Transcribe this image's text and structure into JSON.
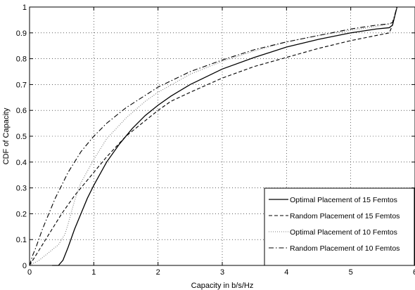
{
  "chart_data": {
    "type": "line",
    "title": "",
    "xlabel": "Capacity in b/s/Hz",
    "ylabel": "CDF of Capacity",
    "xlim": [
      0,
      6
    ],
    "ylim": [
      0,
      1
    ],
    "xticks": [
      "0",
      "1",
      "2",
      "3",
      "4",
      "5",
      "6"
    ],
    "yticks": [
      "0",
      "0.1",
      "0.2",
      "0.3",
      "0.4",
      "0.5",
      "0.6",
      "0.7",
      "0.8",
      "0.9",
      "1"
    ],
    "grid": true,
    "legend_position": "bottom-right",
    "series": [
      {
        "name": "Optimal Placement of 15 Femtos",
        "color": "#000000",
        "dash": "solid",
        "points": [
          [
            0.35,
            0.0
          ],
          [
            0.45,
            0.0
          ],
          [
            0.52,
            0.02
          ],
          [
            0.6,
            0.07
          ],
          [
            0.7,
            0.14
          ],
          [
            0.8,
            0.2
          ],
          [
            0.9,
            0.26
          ],
          [
            1.0,
            0.31
          ],
          [
            1.2,
            0.4
          ],
          [
            1.4,
            0.47
          ],
          [
            1.6,
            0.53
          ],
          [
            1.8,
            0.58
          ],
          [
            2.0,
            0.62
          ],
          [
            2.2,
            0.655
          ],
          [
            2.5,
            0.7
          ],
          [
            3.0,
            0.76
          ],
          [
            3.5,
            0.805
          ],
          [
            4.0,
            0.845
          ],
          [
            4.5,
            0.875
          ],
          [
            5.0,
            0.9
          ],
          [
            5.4,
            0.915
          ],
          [
            5.6,
            0.92
          ],
          [
            5.65,
            0.93
          ],
          [
            5.72,
            1.0
          ]
        ]
      },
      {
        "name": "Random Placement of 15 Femtos",
        "color": "#000000",
        "dash": "dashed",
        "points": [
          [
            0.0,
            0.0
          ],
          [
            0.1,
            0.04
          ],
          [
            0.2,
            0.08
          ],
          [
            0.35,
            0.14
          ],
          [
            0.5,
            0.2
          ],
          [
            0.7,
            0.27
          ],
          [
            0.9,
            0.33
          ],
          [
            1.0,
            0.36
          ],
          [
            1.2,
            0.42
          ],
          [
            1.5,
            0.5
          ],
          [
            2.0,
            0.6
          ],
          [
            2.2,
            0.635
          ],
          [
            2.5,
            0.67
          ],
          [
            3.0,
            0.725
          ],
          [
            3.5,
            0.77
          ],
          [
            4.0,
            0.805
          ],
          [
            4.5,
            0.84
          ],
          [
            5.0,
            0.87
          ],
          [
            5.3,
            0.885
          ],
          [
            5.6,
            0.9
          ],
          [
            5.65,
            0.93
          ],
          [
            5.72,
            1.0
          ]
        ]
      },
      {
        "name": "Optimal Placement of 10 Femtos",
        "color": "#7f7f7f",
        "dash": "dotted",
        "points": [
          [
            0.0,
            0.0
          ],
          [
            0.15,
            0.02
          ],
          [
            0.3,
            0.05
          ],
          [
            0.45,
            0.08
          ],
          [
            0.5,
            0.1
          ],
          [
            0.55,
            0.12
          ],
          [
            0.6,
            0.16
          ],
          [
            0.7,
            0.25
          ],
          [
            0.8,
            0.32
          ],
          [
            1.0,
            0.41
          ],
          [
            1.2,
            0.49
          ],
          [
            1.5,
            0.57
          ],
          [
            1.8,
            0.635
          ],
          [
            2.0,
            0.67
          ],
          [
            2.5,
            0.74
          ],
          [
            3.0,
            0.79
          ],
          [
            3.5,
            0.83
          ],
          [
            4.0,
            0.865
          ],
          [
            4.5,
            0.89
          ],
          [
            5.0,
            0.91
          ],
          [
            5.4,
            0.925
          ],
          [
            5.6,
            0.935
          ],
          [
            5.65,
            0.94
          ],
          [
            5.72,
            1.0
          ]
        ]
      },
      {
        "name": "Random Placement of 10 Femtos",
        "color": "#000000",
        "dash": "dashdot",
        "points": [
          [
            0.0,
            0.0
          ],
          [
            0.05,
            0.04
          ],
          [
            0.1,
            0.07
          ],
          [
            0.2,
            0.14
          ],
          [
            0.3,
            0.2
          ],
          [
            0.4,
            0.26
          ],
          [
            0.5,
            0.31
          ],
          [
            0.6,
            0.36
          ],
          [
            0.8,
            0.44
          ],
          [
            1.0,
            0.5
          ],
          [
            1.2,
            0.55
          ],
          [
            1.5,
            0.61
          ],
          [
            2.0,
            0.69
          ],
          [
            2.5,
            0.75
          ],
          [
            3.0,
            0.795
          ],
          [
            3.5,
            0.835
          ],
          [
            4.0,
            0.865
          ],
          [
            4.5,
            0.89
          ],
          [
            5.0,
            0.915
          ],
          [
            5.4,
            0.93
          ],
          [
            5.6,
            0.935
          ],
          [
            5.65,
            0.94
          ],
          [
            5.72,
            1.0
          ]
        ]
      }
    ]
  }
}
